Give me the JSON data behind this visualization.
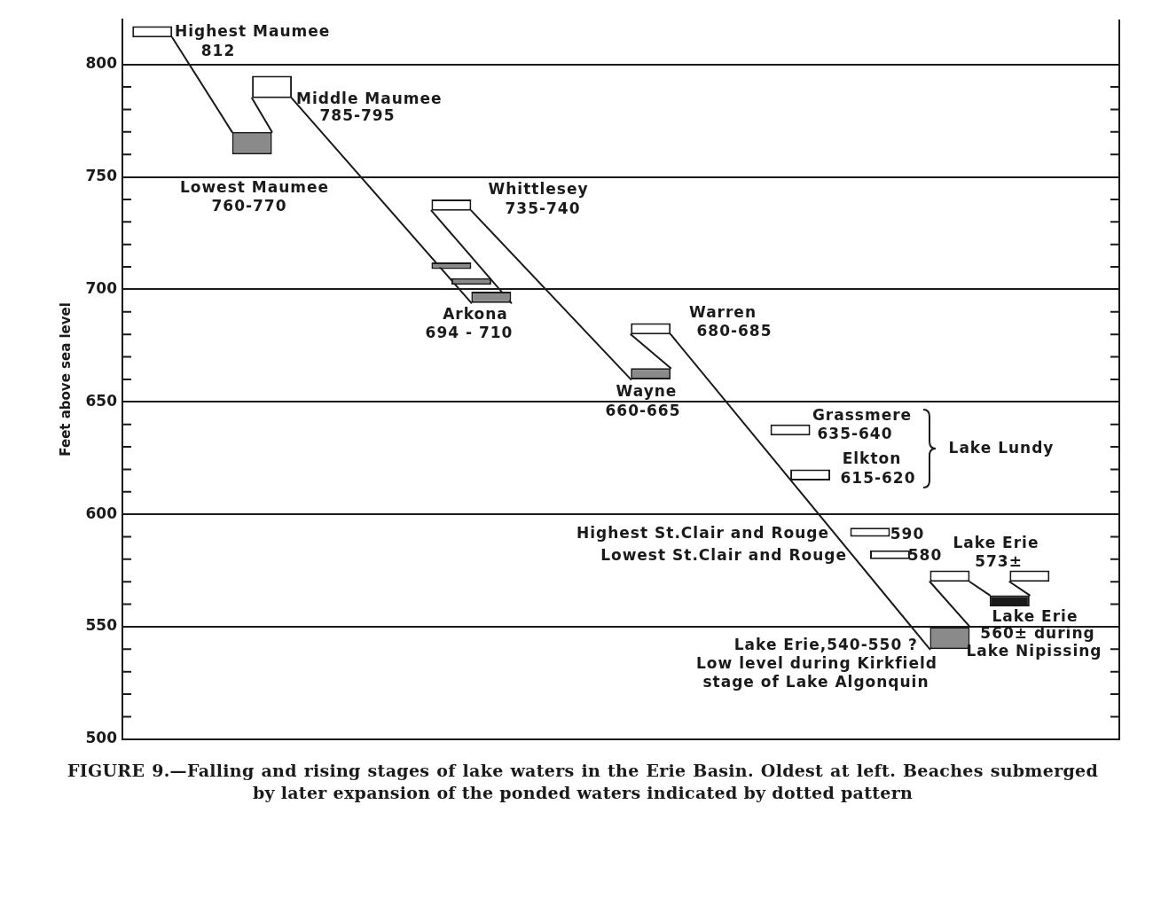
{
  "chart_data": {
    "type": "bar",
    "title": "FIGURE 9.—Falling and rising stages of lake waters in the Erie Basin. Oldest at left. Beaches submerged by later expansion of the ponded waters indicated by dotted pattern",
    "ylabel": "Feet above sea level",
    "categories": [
      null,
      null,
      null,
      null,
      null,
      null,
      null,
      null,
      null,
      null,
      null,
      null,
      null,
      null,
      null,
      null,
      null,
      null,
      null,
      null,
      null,
      null,
      null,
      null,
      null,
      null,
      null,
      null,
      null,
      null,
      null,
      null,
      null,
      null,
      null,
      null,
      null,
      null,
      null,
      null,
      null,
      null,
      null,
      null,
      null,
      null,
      null,
      null,
      null,
      null
    ],
    "series": [
      {
        "color": "#ffffff",
        "values": [
          null,
          5,
          null,
          null,
          null,
          null,
          null,
          10,
          null,
          null,
          null,
          null,
          null,
          null,
          null,
          null,
          5,
          null,
          null,
          null,
          null,
          null,
          null,
          null,
          null,
          null,
          5,
          null,
          null,
          null,
          null,
          null,
          null,
          5,
          5,
          null,
          null,
          4,
          4,
          null,
          null,
          5,
          null,
          null,
          null,
          5,
          null,
          null,
          null,
          null
        ],
        "base": [
          null,
          812,
          null,
          null,
          null,
          null,
          null,
          785,
          null,
          null,
          null,
          null,
          null,
          null,
          null,
          null,
          735,
          null,
          null,
          null,
          null,
          null,
          null,
          null,
          null,
          null,
          680,
          null,
          null,
          null,
          null,
          null,
          null,
          635,
          615,
          null,
          null,
          590,
          580,
          null,
          null,
          570,
          null,
          null,
          null,
          570,
          null,
          null,
          null,
          null
        ]
      },
      {
        "color": "#8a8a8a",
        "values": [
          null,
          null,
          null,
          null,
          null,
          null,
          10,
          null,
          null,
          null,
          null,
          null,
          null,
          null,
          null,
          null,
          3,
          3,
          5,
          null,
          null,
          null,
          null,
          null,
          null,
          null,
          5,
          null,
          null,
          null,
          null,
          null,
          null,
          null,
          null,
          null,
          null,
          null,
          null,
          null,
          null,
          10,
          null,
          null,
          null,
          null,
          null,
          null,
          null,
          null
        ],
        "base": [
          null,
          null,
          null,
          null,
          null,
          null,
          760,
          null,
          null,
          null,
          null,
          null,
          null,
          null,
          null,
          null,
          709,
          702,
          694,
          null,
          null,
          null,
          null,
          null,
          null,
          null,
          660,
          null,
          null,
          null,
          null,
          null,
          null,
          null,
          null,
          null,
          null,
          null,
          null,
          null,
          null,
          540,
          null,
          null,
          null,
          null,
          null,
          null,
          null,
          null
        ]
      },
      {
        "color": "#1a1a1a",
        "values": [
          null,
          null,
          null,
          null,
          null,
          null,
          null,
          null,
          null,
          null,
          null,
          null,
          null,
          null,
          null,
          null,
          null,
          null,
          null,
          null,
          null,
          null,
          null,
          null,
          null,
          null,
          null,
          null,
          null,
          null,
          null,
          null,
          null,
          null,
          null,
          null,
          null,
          null,
          null,
          null,
          null,
          null,
          null,
          null,
          5,
          null,
          null,
          null,
          null,
          null
        ],
        "base": [
          null,
          null,
          null,
          null,
          null,
          null,
          null,
          null,
          null,
          null,
          null,
          null,
          null,
          null,
          null,
          null,
          null,
          null,
          null,
          null,
          null,
          null,
          null,
          null,
          null,
          null,
          null,
          null,
          null,
          null,
          null,
          null,
          null,
          null,
          null,
          null,
          null,
          null,
          null,
          null,
          null,
          null,
          null,
          null,
          559,
          null,
          null,
          null,
          null,
          null
        ]
      },
      {
        "type": "line",
        "color": "#1a1a1a",
        "values": [
          null,
          null,
          812,
          null,
          null,
          770,
          null,
          null,
          null,
          null,
          null,
          null,
          null,
          null,
          null,
          null,
          null,
          null,
          null,
          null,
          null,
          null,
          null,
          null,
          null,
          null,
          null,
          null,
          null,
          null,
          null,
          null,
          null,
          null,
          null,
          null,
          null,
          null,
          null,
          null,
          null,
          null,
          null,
          null,
          null,
          null,
          null,
          null,
          null,
          null
        ]
      },
      {
        "type": "line",
        "color": "#1a1a1a",
        "values": [
          null,
          null,
          null,
          null,
          null,
          null,
          785,
          770,
          null,
          null,
          null,
          null,
          null,
          null,
          null,
          null,
          null,
          null,
          null,
          null,
          null,
          null,
          null,
          null,
          null,
          null,
          null,
          null,
          null,
          null,
          null,
          null,
          null,
          null,
          null,
          null,
          null,
          null,
          null,
          null,
          null,
          null,
          null,
          null,
          null,
          null,
          null,
          null,
          null,
          null
        ]
      },
      {
        "type": "line",
        "color": "#1a1a1a",
        "values": [
          null,
          null,
          null,
          null,
          null,
          null,
          null,
          null,
          785,
          null,
          null,
          null,
          null,
          null,
          null,
          null,
          null,
          694,
          null,
          null,
          null,
          null,
          null,
          null,
          null,
          null,
          null,
          null,
          null,
          null,
          null,
          null,
          null,
          null,
          null,
          null,
          null,
          null,
          null,
          null,
          null,
          null,
          null,
          null,
          null,
          null,
          null,
          null,
          null,
          null
        ]
      },
      {
        "type": "line",
        "color": "#1a1a1a",
        "values": [
          null,
          null,
          null,
          null,
          null,
          null,
          null,
          null,
          null,
          null,
          null,
          null,
          null,
          null,
          null,
          735,
          null,
          null,
          null,
          694,
          null,
          null,
          null,
          null,
          null,
          null,
          null,
          null,
          null,
          null,
          null,
          null,
          null,
          null,
          null,
          null,
          null,
          null,
          null,
          null,
          null,
          null,
          null,
          null,
          null,
          null,
          null,
          null,
          null,
          null
        ]
      },
      {
        "type": "line",
        "color": "#1a1a1a",
        "values": [
          null,
          null,
          null,
          null,
          null,
          null,
          null,
          null,
          null,
          null,
          null,
          null,
          null,
          null,
          null,
          null,
          null,
          735,
          null,
          null,
          null,
          null,
          null,
          null,
          null,
          660,
          null,
          null,
          null,
          null,
          null,
          null,
          null,
          null,
          null,
          null,
          null,
          null,
          null,
          null,
          null,
          null,
          null,
          null,
          null,
          null,
          null,
          null,
          null,
          null
        ]
      },
      {
        "type": "line",
        "color": "#1a1a1a",
        "values": [
          null,
          null,
          null,
          null,
          null,
          null,
          null,
          null,
          null,
          null,
          null,
          null,
          null,
          null,
          null,
          null,
          null,
          null,
          null,
          null,
          null,
          null,
          null,
          null,
          null,
          680,
          null,
          665,
          null,
          null,
          null,
          null,
          null,
          null,
          null,
          null,
          null,
          null,
          null,
          null,
          null,
          null,
          null,
          null,
          null,
          null,
          null,
          null,
          null,
          null
        ]
      },
      {
        "type": "line",
        "color": "#1a1a1a",
        "values": [
          null,
          null,
          null,
          null,
          null,
          null,
          null,
          null,
          null,
          null,
          null,
          null,
          null,
          null,
          null,
          null,
          null,
          null,
          null,
          null,
          null,
          null,
          null,
          null,
          null,
          null,
          null,
          680,
          null,
          null,
          null,
          null,
          null,
          null,
          null,
          null,
          null,
          null,
          null,
          null,
          540,
          null,
          null,
          null,
          null,
          null,
          null,
          null,
          null,
          null
        ]
      },
      {
        "type": "line",
        "color": "#1a1a1a",
        "values": [
          null,
          null,
          null,
          null,
          null,
          null,
          null,
          null,
          null,
          null,
          null,
          null,
          null,
          null,
          null,
          null,
          null,
          null,
          null,
          null,
          null,
          null,
          null,
          null,
          null,
          null,
          null,
          null,
          null,
          null,
          null,
          null,
          null,
          null,
          null,
          null,
          null,
          null,
          null,
          null,
          570,
          null,
          550,
          null,
          null,
          null,
          null,
          null,
          null,
          null
        ]
      },
      {
        "type": "line",
        "color": "#1a1a1a",
        "values": [
          null,
          null,
          null,
          null,
          null,
          null,
          null,
          null,
          null,
          null,
          null,
          null,
          null,
          null,
          null,
          null,
          null,
          null,
          null,
          null,
          null,
          null,
          null,
          null,
          null,
          null,
          null,
          null,
          null,
          null,
          null,
          null,
          null,
          null,
          null,
          null,
          null,
          null,
          null,
          null,
          null,
          null,
          570,
          564,
          null,
          null,
          null,
          null,
          null,
          null
        ]
      },
      {
        "type": "line",
        "color": "#1a1a1a",
        "values": [
          null,
          null,
          null,
          null,
          null,
          null,
          null,
          null,
          null,
          null,
          null,
          null,
          null,
          null,
          null,
          null,
          null,
          null,
          null,
          null,
          null,
          null,
          null,
          null,
          null,
          null,
          null,
          null,
          null,
          null,
          null,
          null,
          null,
          null,
          null,
          null,
          null,
          null,
          null,
          null,
          null,
          null,
          null,
          null,
          570,
          564,
          null,
          null,
          null,
          null
        ]
      }
    ],
    "ylim": [
      500,
      820
    ],
    "yticks": [
      500,
      {
        "value": 510,
        "label": null
      },
      {
        "value": 520,
        "label": null
      },
      {
        "value": 530,
        "label": null
      },
      {
        "value": 540,
        "label": null
      },
      550,
      {
        "value": 560,
        "label": null
      },
      {
        "value": 570,
        "label": null
      },
      {
        "value": 580,
        "label": null
      },
      {
        "value": 590,
        "label": null
      },
      600,
      {
        "value": 610,
        "label": null
      },
      {
        "value": 620,
        "label": null
      },
      {
        "value": 630,
        "label": null
      },
      {
        "value": 640,
        "label": null
      },
      650,
      {
        "value": 660,
        "label": null
      },
      {
        "value": 670,
        "label": null
      },
      {
        "value": 680,
        "label": null
      },
      {
        "value": 690,
        "label": null
      },
      700,
      {
        "value": 710,
        "label": null
      },
      {
        "value": 720,
        "label": null
      },
      {
        "value": 730,
        "label": null
      },
      {
        "value": 740,
        "label": null
      },
      750,
      {
        "value": 760,
        "label": null
      },
      {
        "value": 770,
        "label": null
      },
      {
        "value": 780,
        "label": null
      },
      {
        "value": 790,
        "label": null
      },
      800
    ],
    "grid": "y",
    "tick_labels": "y",
    "annotations": [
      "Highest Maumee",
      "812",
      "Middle Maumee",
      "785-795",
      "Lowest Maumee",
      "760-770",
      "Whittlesey",
      "735-740",
      "Arkona",
      "694 - 710",
      "Warren",
      "680-685",
      "Wayne",
      "660-665",
      "Grassmere",
      "635-640",
      "Elkton",
      "615-620",
      "Lake Lundy",
      "Highest St.Clair and Rouge",
      "590",
      "Lowest St.Clair and Rouge",
      "580",
      "Lake Erie",
      "573±",
      "Lake Erie",
      "560± during",
      "Lake Nipissing",
      "Lake Erie,540-550 ?",
      "Low level during Kirkfield",
      "stage of Lake Algonquin"
    ]
  }
}
